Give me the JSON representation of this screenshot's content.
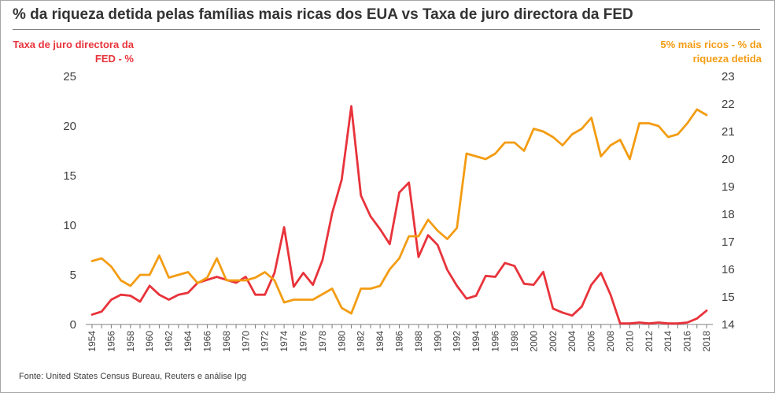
{
  "title": "% da riqueza detida pelas famílias mais ricas dos EUA vs Taxa de juro directora da FED",
  "source": "Fonte: United States Census Bureau, Reuters e análise Ipg",
  "colors": {
    "fed": "#e8333b",
    "wealth": "#f39c12",
    "axis": "#7f7f7f",
    "text": "#404040"
  },
  "chart_data": {
    "type": "line",
    "x": [
      1954,
      1955,
      1956,
      1957,
      1958,
      1959,
      1960,
      1961,
      1962,
      1963,
      1964,
      1965,
      1966,
      1967,
      1968,
      1969,
      1970,
      1971,
      1972,
      1973,
      1974,
      1975,
      1976,
      1977,
      1978,
      1979,
      1980,
      1981,
      1982,
      1983,
      1984,
      1985,
      1986,
      1987,
      1988,
      1989,
      1990,
      1991,
      1992,
      1993,
      1994,
      1995,
      1996,
      1997,
      1998,
      1999,
      2000,
      2001,
      2002,
      2003,
      2004,
      2005,
      2006,
      2007,
      2008,
      2009,
      2010,
      2011,
      2012,
      2013,
      2014,
      2015,
      2016,
      2017,
      2018
    ],
    "x_tick_labels": [
      "1954",
      "1956",
      "1958",
      "1960",
      "1962",
      "1964",
      "1966",
      "1968",
      "1970",
      "1972",
      "1974",
      "1976",
      "1978",
      "1980",
      "1982",
      "1984",
      "1986",
      "1988",
      "1990",
      "1992",
      "1994",
      "1996",
      "1998",
      "2000",
      "2002",
      "2004",
      "2006",
      "2008",
      "2010",
      "2012",
      "2014",
      "2016",
      "2018"
    ],
    "series": [
      {
        "name": "Taxa de juro directora da FED - %",
        "axis": "left",
        "values": [
          1.0,
          1.3,
          2.5,
          3.0,
          2.9,
          2.3,
          3.9,
          3.0,
          2.5,
          3.0,
          3.2,
          4.2,
          4.5,
          4.8,
          4.5,
          4.2,
          4.8,
          3.0,
          3.0,
          5.2,
          9.8,
          3.8,
          5.2,
          4.0,
          6.5,
          11.2,
          14.6,
          22.0,
          13.0,
          10.9,
          9.6,
          8.1,
          13.3,
          14.3,
          6.8,
          9.0,
          8.0,
          5.5,
          3.9,
          2.6,
          2.9,
          4.9,
          4.8,
          6.2,
          5.9,
          4.1,
          4.0,
          5.3,
          1.6,
          1.2,
          0.9,
          1.8,
          4.0,
          5.2,
          3.0,
          0.1,
          0.1,
          0.2,
          0.1,
          0.2,
          0.1,
          0.1,
          0.2,
          0.6,
          1.4
        ]
      },
      {
        "name": "5% mais ricos - % da riqueza detida",
        "axis": "right",
        "values": [
          16.3,
          16.4,
          16.1,
          15.6,
          15.4,
          15.8,
          15.8,
          16.5,
          15.7,
          15.8,
          15.9,
          15.5,
          15.7,
          16.4,
          15.6,
          15.6,
          15.6,
          15.7,
          15.9,
          15.6,
          14.8,
          14.9,
          14.9,
          14.9,
          15.1,
          15.3,
          14.6,
          14.4,
          15.3,
          15.3,
          15.4,
          16.0,
          16.4,
          17.2,
          17.2,
          17.8,
          17.4,
          17.1,
          17.5,
          20.2,
          20.1,
          20.0,
          20.2,
          20.6,
          20.6,
          20.3,
          21.1,
          21.0,
          20.8,
          20.5,
          20.9,
          21.1,
          21.5,
          20.1,
          20.5,
          20.7,
          20.0,
          21.3,
          21.3,
          21.2,
          20.8,
          20.9,
          21.3,
          21.8,
          21.6
        ]
      }
    ],
    "y_left": {
      "min": 0,
      "max": 25,
      "ticks": [
        "0",
        "5",
        "10",
        "15",
        "20",
        "25"
      ],
      "label": "Taxa de juro directora da FED - %"
    },
    "y_right": {
      "min": 14,
      "max": 23,
      "ticks": [
        "14",
        "15",
        "16",
        "17",
        "18",
        "19",
        "20",
        "21",
        "22",
        "23"
      ],
      "label": "5% mais ricos - % da riqueza detida"
    },
    "grid": false,
    "legend": "none"
  }
}
